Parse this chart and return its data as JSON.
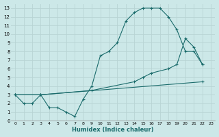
{
  "xlabel": "Humidex (Indice chaleur)",
  "bg_color": "#cce8e8",
  "grid_color": "#b8d4d4",
  "line_color": "#1a6b6b",
  "xlim": [
    -0.5,
    23.5
  ],
  "ylim": [
    0,
    13.5
  ],
  "xticks": [
    0,
    1,
    2,
    3,
    4,
    5,
    6,
    7,
    8,
    9,
    10,
    11,
    12,
    13,
    14,
    15,
    16,
    17,
    18,
    19,
    20,
    21,
    22,
    23
  ],
  "yticks": [
    0,
    1,
    2,
    3,
    4,
    5,
    6,
    7,
    8,
    9,
    10,
    11,
    12,
    13
  ],
  "line1_x": [
    0,
    1,
    2,
    3,
    4,
    5,
    6,
    7,
    8,
    9,
    10,
    11,
    12,
    13,
    14,
    15,
    16,
    17,
    18,
    19,
    20,
    21,
    22
  ],
  "line1_y": [
    3,
    2,
    2,
    3,
    1.5,
    1.5,
    1,
    0.5,
    2.5,
    4,
    7.5,
    8,
    9,
    11.5,
    12.5,
    13,
    13,
    13,
    12,
    10.5,
    8,
    8,
    6.5
  ],
  "line2_x": [
    0,
    3,
    9,
    14,
    15,
    16,
    18,
    19,
    20,
    21,
    22
  ],
  "line2_y": [
    3,
    3,
    3.5,
    4.5,
    5,
    5.5,
    6,
    6.5,
    9.5,
    8.5,
    6.5
  ],
  "line3_x": [
    0,
    3,
    22
  ],
  "line3_y": [
    3,
    3,
    4.5
  ],
  "marker": "+",
  "markersize": 3,
  "linewidth": 0.8
}
